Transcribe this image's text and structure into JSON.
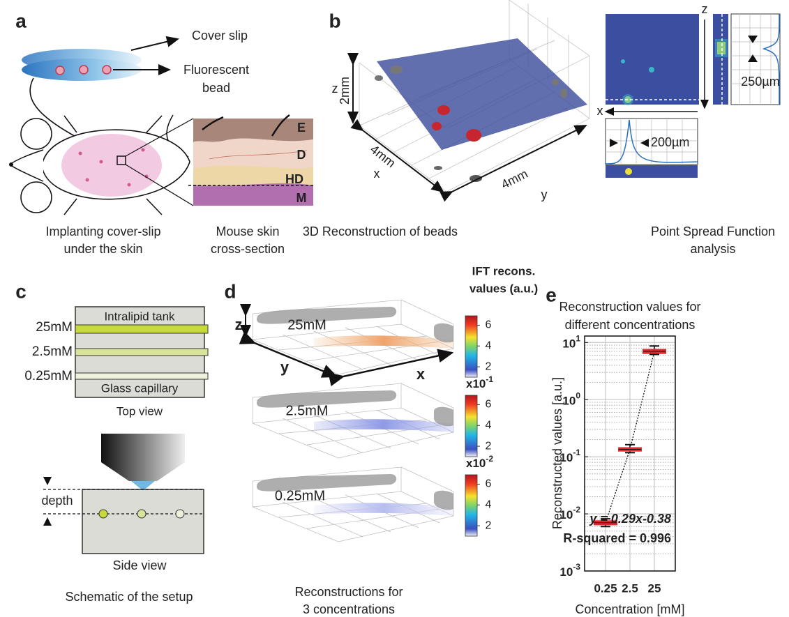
{
  "a": {
    "letter": "a",
    "cover_slip": "Cover slip",
    "bead": [
      "Fluorescent",
      "bead"
    ],
    "layers": [
      "E",
      "D",
      "HD",
      "M"
    ],
    "caption": [
      "Implanting cover-slip",
      "under the skin"
    ],
    "caption2": [
      "Mouse skin",
      "cross-section"
    ]
  },
  "b": {
    "letter": "b",
    "z": "z",
    "z_size": "2mm",
    "x": "x",
    "x_size": "4mm",
    "y": "y",
    "y_size": "4mm",
    "psf_z": "z",
    "psf_x": "x",
    "psf_z_width": "250µm",
    "psf_x_width": "200µm",
    "caption": "3D Reconstruction of beads",
    "caption2": [
      "Point Spread Function",
      "analysis"
    ]
  },
  "c": {
    "letter": "c",
    "tank": "Intralipid tank",
    "concentrations": [
      "25mM",
      "2.5mM",
      "0.25mM"
    ],
    "capillary": "Glass capillary",
    "top_view": "Top view",
    "depth": "depth",
    "side_view": "Side view",
    "caption": "Schematic of the setup"
  },
  "d": {
    "letter": "d",
    "colorbar_title": [
      "IFT recons.",
      "values (a.u.)"
    ],
    "volumes": [
      "25mM",
      "2.5mM",
      "0.25mM"
    ],
    "z": "z",
    "y": "y",
    "x": "x",
    "colorbars": [
      {
        "ticks": [
          2,
          4,
          6
        ],
        "lim": [
          1,
          6.9
        ]
      },
      {
        "multiplier": {
          "base": "x10",
          "exponent": "-1"
        },
        "ticks": [
          2,
          4,
          6
        ],
        "lim": [
          1,
          6.9
        ]
      },
      {
        "multiplier": {
          "base": "x10",
          "exponent": "-2"
        },
        "ticks": [
          2,
          4,
          6
        ],
        "lim": [
          1,
          6.9
        ]
      }
    ],
    "caption": [
      "Reconstructions for",
      "3 concentrations"
    ]
  },
  "e": {
    "letter": "e",
    "chart_data": {
      "type": "box",
      "title": [
        "Reconstruction values for",
        "different concentrations"
      ],
      "y_label": "Reconstructed values [a.u.]",
      "x_label": "Concentration [mM]",
      "categories": [
        "0.25",
        "2.5",
        "25"
      ],
      "values": [
        0.007,
        0.135,
        7
      ],
      "box_low": [
        0.0065,
        0.127,
        6.5
      ],
      "box_high": [
        0.0075,
        0.143,
        7.5
      ],
      "whisker_low": [
        0.006,
        0.118,
        6.2
      ],
      "whisker_high": [
        0.0082,
        0.163,
        8.7
      ],
      "color": "#e3262b",
      "log_scale": true,
      "grid": true,
      "ylim": [
        0.001,
        13
      ],
      "yticks": [
        {
          "value": 0.001,
          "label": "10",
          "exponent": "-3"
        },
        {
          "value": 0.01,
          "label": "10",
          "exponent": "-2"
        },
        {
          "value": 0.1,
          "label": "10",
          "exponent": "-1"
        },
        {
          "value": 1,
          "label": "10",
          "exponent": "0"
        },
        {
          "value": 10,
          "label": "10",
          "exponent": "1"
        }
      ],
      "annotations": [
        "y = 0.29x-0.38",
        "R-squared = 0.996"
      ]
    }
  }
}
